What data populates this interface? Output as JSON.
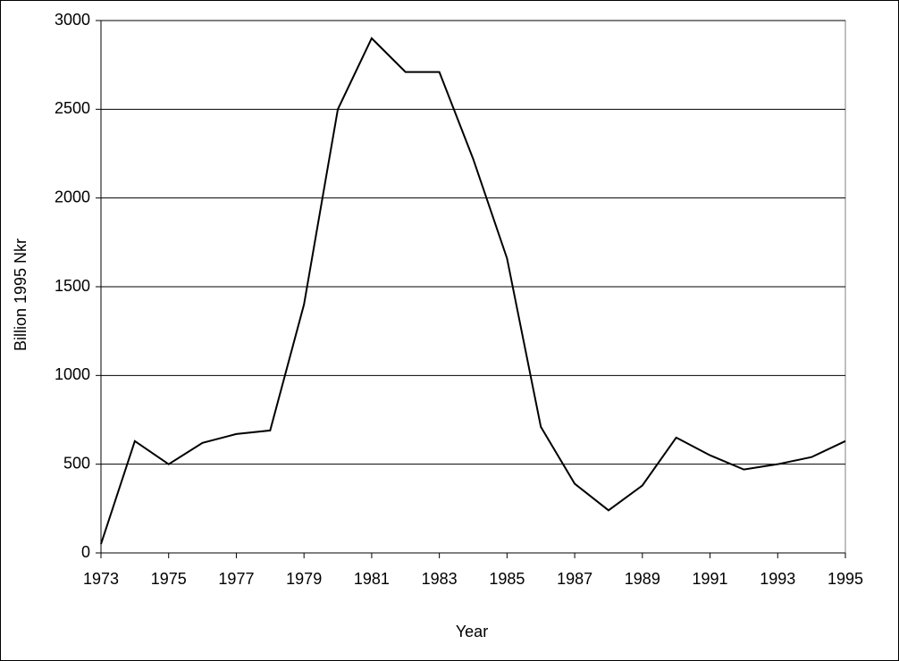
{
  "chart_data": {
    "type": "line",
    "x": [
      1973,
      1974,
      1975,
      1976,
      1977,
      1978,
      1979,
      1980,
      1981,
      1982,
      1983,
      1984,
      1985,
      1986,
      1987,
      1988,
      1989,
      1990,
      1991,
      1992,
      1993,
      1994,
      1995
    ],
    "series": [
      {
        "color": "#000000",
        "values": [
          50,
          630,
          500,
          620,
          670,
          690,
          1400,
          2500,
          2900,
          2710,
          2710,
          2220,
          1660,
          710,
          390,
          240,
          380,
          650,
          550,
          470,
          500,
          540,
          630
        ]
      }
    ],
    "xlim": [
      1973,
      1995
    ],
    "xticks": [
      1973,
      1975,
      1977,
      1979,
      1981,
      1983,
      1985,
      1987,
      1989,
      1991,
      1993,
      1995
    ],
    "ylim": [
      0,
      3000
    ],
    "yticks": [
      0,
      500,
      1000,
      1500,
      2000,
      2500,
      3000
    ],
    "xlabel": "Year",
    "ylabel": "Billion 1995 Nkr",
    "grid": true
  }
}
